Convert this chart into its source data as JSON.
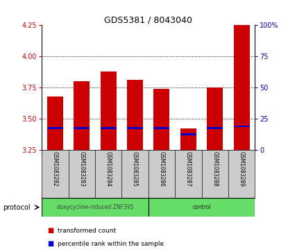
{
  "title": "GDS5381 / 8043040",
  "samples": [
    "GSM1083282",
    "GSM1083283",
    "GSM1083284",
    "GSM1083285",
    "GSM1083286",
    "GSM1083287",
    "GSM1083288",
    "GSM1083289"
  ],
  "red_top": [
    3.68,
    3.8,
    3.88,
    3.81,
    3.74,
    3.42,
    3.75,
    4.25
  ],
  "red_bottom": [
    3.25,
    3.25,
    3.25,
    3.25,
    3.25,
    3.25,
    3.25,
    3.25
  ],
  "blue_values": [
    3.425,
    3.425,
    3.425,
    3.425,
    3.425,
    3.375,
    3.425,
    3.44
  ],
  "ylim_left": [
    3.25,
    4.25
  ],
  "yticks_left": [
    3.25,
    3.5,
    3.75,
    4.0,
    4.25
  ],
  "ylim_right": [
    0,
    100
  ],
  "yticks_right": [
    0,
    25,
    50,
    75,
    100
  ],
  "ytick_right_labels": [
    "0",
    "25",
    "50",
    "75",
    "100%"
  ],
  "group1_label": "doxycycline-induced ZNF395",
  "group2_label": "control",
  "group_color": "#66dd66",
  "legend_red_label": "transformed count",
  "legend_blue_label": "percentile rank within the sample",
  "protocol_label": "protocol",
  "bar_color_red": "#cc0000",
  "bar_color_blue": "#0000cc",
  "bar_width": 0.6,
  "background_color": "#ffffff",
  "tick_area_color": "#cccccc",
  "left_tick_color": "#cc0000",
  "right_tick_color": "#0000bb"
}
